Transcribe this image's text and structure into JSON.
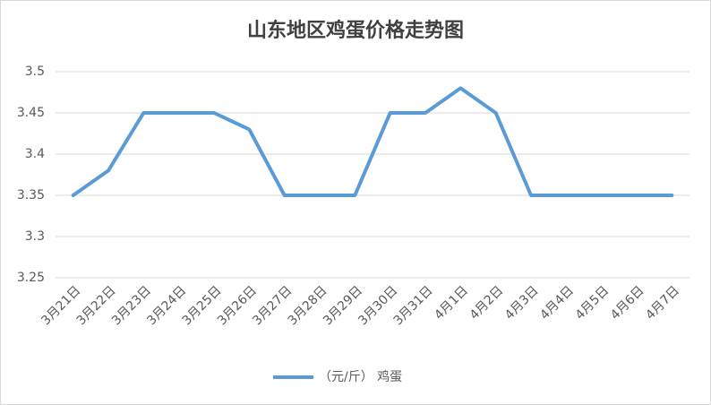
{
  "chart_data": {
    "type": "line",
    "title": "山东地区鸡蛋价格走势图",
    "categories": [
      "3月21日",
      "3月22日",
      "3月23日",
      "3月24日",
      "3月25日",
      "3月26日",
      "3月27日",
      "3月28日",
      "3月29日",
      "3月30日",
      "3月31日",
      "4月1日",
      "4月2日",
      "4月3日",
      "4月4日",
      "4月5日",
      "4月6日",
      "4月7日"
    ],
    "series": [
      {
        "name": "（元/斤） 鸡蛋",
        "color": "#5b9bd5",
        "values": [
          3.35,
          3.38,
          3.45,
          3.45,
          3.45,
          3.43,
          3.35,
          3.35,
          3.35,
          3.45,
          3.45,
          3.48,
          3.45,
          3.35,
          3.35,
          3.35,
          3.35,
          3.35
        ]
      }
    ],
    "ylim": [
      3.25,
      3.5
    ],
    "yticks": [
      3.25,
      3.3,
      3.35,
      3.4,
      3.45,
      3.5
    ],
    "grid": true,
    "legend": "bottom"
  }
}
